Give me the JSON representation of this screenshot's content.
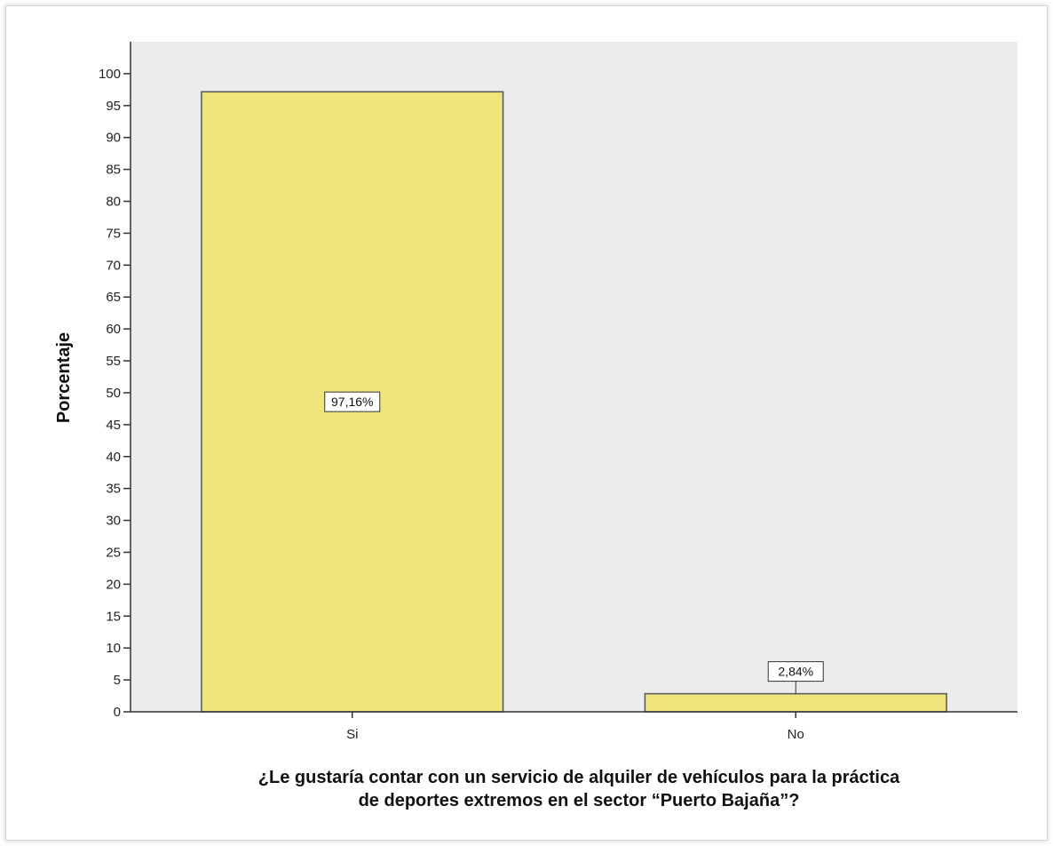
{
  "chart_data": {
    "type": "bar",
    "categories": [
      "Si",
      "No"
    ],
    "values": [
      97.16,
      2.84
    ],
    "data_labels": [
      "97,16%",
      "2,84%"
    ],
    "title": "",
    "ylabel": "Porcentaje",
    "xlabel_lines": [
      "¿Le gustaría contar con un servicio de alquiler de vehículos para la práctica",
      "de deportes extremos en el sector “Puerto Bajaña”?"
    ],
    "ylim": [
      0,
      105
    ],
    "yticks": [
      0,
      5,
      10,
      15,
      20,
      25,
      30,
      35,
      40,
      45,
      50,
      55,
      60,
      65,
      70,
      75,
      80,
      85,
      90,
      95,
      100
    ],
    "grid": false,
    "plot_background": "#ececec",
    "bar_color": "#f0e47c",
    "bar_edge_color": "#555555"
  }
}
